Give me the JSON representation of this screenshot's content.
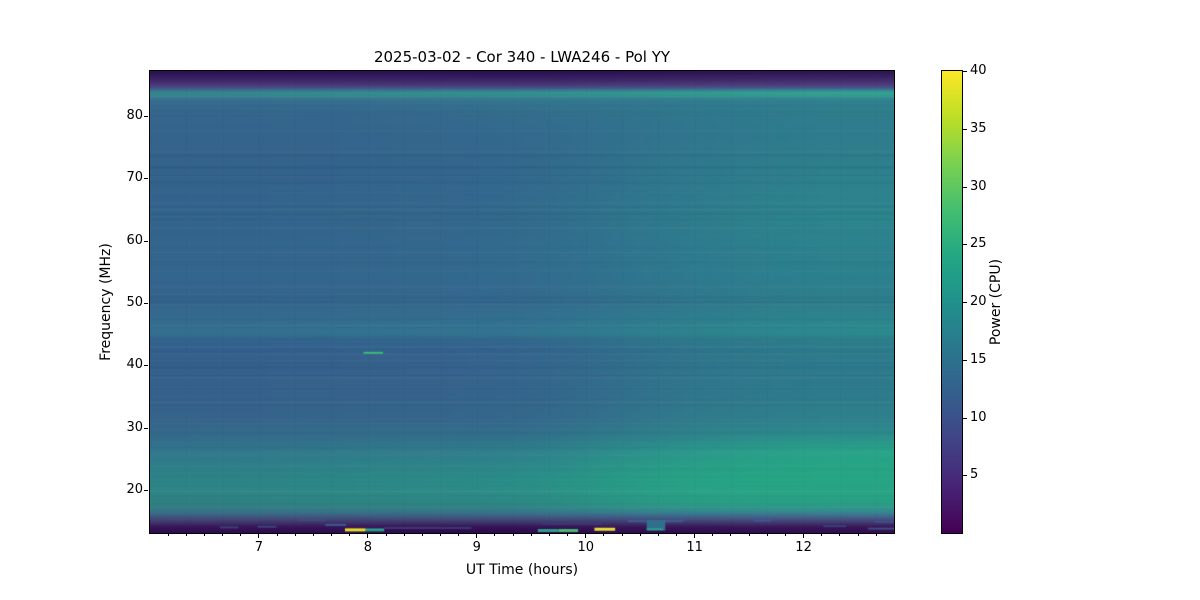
{
  "chart_data": {
    "type": "heatmap",
    "title": "2025-03-02 - Cor 340 - LWA246 - Pol YY",
    "xlabel": "UT Time (hours)",
    "ylabel": "Frequency (MHz)",
    "x_range": [
      6.0,
      12.83
    ],
    "y_range": [
      13.1,
      87.2
    ],
    "x_ticks": [
      7,
      8,
      9,
      10,
      11,
      12
    ],
    "x_minor_divisions": 6,
    "y_ticks": [
      20,
      30,
      40,
      50,
      60,
      70,
      80
    ],
    "colorbar": {
      "label": "Power (CPU)",
      "range": [
        0,
        40
      ],
      "ticks": [
        5,
        10,
        15,
        20,
        25,
        30,
        35,
        40
      ],
      "colormap": "viridis",
      "stops": [
        {
          "p": 0.0,
          "c": "#440154"
        },
        {
          "p": 0.1,
          "c": "#482475"
        },
        {
          "p": 0.2,
          "c": "#414487"
        },
        {
          "p": 0.3,
          "c": "#355f8d"
        },
        {
          "p": 0.4,
          "c": "#2a788e"
        },
        {
          "p": 0.5,
          "c": "#21918c"
        },
        {
          "p": 0.6,
          "c": "#22a884"
        },
        {
          "p": 0.7,
          "c": "#44bf70"
        },
        {
          "p": 0.8,
          "c": "#7ad151"
        },
        {
          "p": 0.9,
          "c": "#bddf26"
        },
        {
          "p": 1.0,
          "c": "#fde725"
        }
      ]
    },
    "heatmap": {
      "time_stops": [
        6.0,
        7.7,
        9.4,
        11.1,
        12.83
      ],
      "rows": [
        {
          "f": 87.2,
          "colors": [
            "#2b1254",
            "#2b1254",
            "#2a1154",
            "#2c1355",
            "#2e1656"
          ]
        },
        {
          "f": 86.1,
          "colors": [
            "#3a2263",
            "#3a2263",
            "#392162",
            "#3b2464",
            "#3e2767"
          ]
        },
        {
          "f": 85.2,
          "colors": [
            "#4a3674",
            "#493674",
            "#483573",
            "#4b3876",
            "#4e3b79"
          ]
        },
        {
          "f": 84.6,
          "colors": [
            "#465289",
            "#45528a",
            "#44538a",
            "#45568d",
            "#47598f"
          ]
        },
        {
          "f": 84.15,
          "colors": [
            "#37798f",
            "#368090",
            "#348490",
            "#318d90",
            "#309591"
          ]
        },
        {
          "f": 83.7,
          "colors": [
            "#2e8c8c",
            "#2e928d",
            "#2e968d",
            "#2f9e8e",
            "#31a68f"
          ]
        },
        {
          "f": 83.2,
          "colors": [
            "#3a7d92",
            "#398292",
            "#388492",
            "#368a94",
            "#359094"
          ]
        },
        {
          "f": 82.4,
          "colors": [
            "#356b8e",
            "#346f8e",
            "#33748e",
            "#30798e",
            "#2f7f8e"
          ]
        },
        {
          "f": 80.5,
          "colors": [
            "#35658c",
            "#34688d",
            "#336d8d",
            "#30768d",
            "#2e7d8d"
          ]
        },
        {
          "f": 77.0,
          "colors": [
            "#34638b",
            "#34658c",
            "#33698d",
            "#30748d",
            "#2e7c8d"
          ]
        },
        {
          "f": 71.0,
          "colors": [
            "#33628b",
            "#33648c",
            "#32688d",
            "#2f778d",
            "#2d808d"
          ]
        },
        {
          "f": 64.0,
          "colors": [
            "#33648c",
            "#33668c",
            "#326a8d",
            "#2e7a8d",
            "#2c848d"
          ]
        },
        {
          "f": 57.0,
          "colors": [
            "#33658d",
            "#33678d",
            "#326b8e",
            "#2e798e",
            "#2c828e"
          ]
        },
        {
          "f": 50.0,
          "colors": [
            "#34648d",
            "#34668d",
            "#33698e",
            "#2f768d",
            "#2d7e8d"
          ]
        },
        {
          "f": 45.4,
          "colors": [
            "#337090",
            "#337390",
            "#327591",
            "#2d828f",
            "#2b8a8e"
          ]
        },
        {
          "f": 44.7,
          "colors": [
            "#336d8f",
            "#336f8f",
            "#32728f",
            "#2e7e8d",
            "#2b868d"
          ]
        },
        {
          "f": 44.1,
          "colors": [
            "#33628e",
            "#33648e",
            "#33668e",
            "#2f768c",
            "#2d7e8c"
          ]
        },
        {
          "f": 40.5,
          "colors": [
            "#345f8c",
            "#34618c",
            "#34648d",
            "#2f738c",
            "#2d7a8c"
          ]
        },
        {
          "f": 36.0,
          "colors": [
            "#35608b",
            "#35628b",
            "#34648c",
            "#30748c",
            "#2d7a8c"
          ]
        },
        {
          "f": 31.5,
          "colors": [
            "#35638a",
            "#35658a",
            "#34678b",
            "#30788b",
            "#2e808c"
          ]
        },
        {
          "f": 29.0,
          "colors": [
            "#346a8b",
            "#336c8b",
            "#326e8b",
            "#2e808b",
            "#2c8a8c"
          ]
        },
        {
          "f": 26.5,
          "colors": [
            "#31748c",
            "#30788b",
            "#2f7c8b",
            "#2a928b",
            "#28a189"
          ]
        },
        {
          "f": 24.0,
          "colors": [
            "#2e7e89",
            "#2d8289",
            "#2c868a",
            "#289c87",
            "#26a485"
          ]
        },
        {
          "f": 21.5,
          "colors": [
            "#2d8487",
            "#2c8887",
            "#2b8e88",
            "#28a186",
            "#27a685"
          ]
        },
        {
          "f": 19.0,
          "colors": [
            "#2e8485",
            "#2d8885",
            "#2c8c86",
            "#29a086",
            "#28a485"
          ]
        },
        {
          "f": 17.3,
          "colors": [
            "#308083",
            "#2f8384",
            "#2e8785",
            "#2c9a87",
            "#2b9e87"
          ]
        },
        {
          "f": 16.2,
          "colors": [
            "#396f87",
            "#387188",
            "#37748a",
            "#377f90",
            "#388392"
          ]
        },
        {
          "f": 15.4,
          "colors": [
            "#41507c",
            "#41527d",
            "#40547f",
            "#425a85",
            "#435d88"
          ]
        },
        {
          "f": 14.6,
          "colors": [
            "#3f3468",
            "#3f3468",
            "#3e3569",
            "#41386c",
            "#42396d"
          ]
        },
        {
          "f": 13.9,
          "colors": [
            "#371457",
            "#371457",
            "#361356",
            "#381557",
            "#391658"
          ]
        },
        {
          "f": 13.1,
          "colors": [
            "#2f0b51",
            "#2f0b51",
            "#2e0a50",
            "#300c52",
            "#310d53"
          ]
        }
      ]
    },
    "features": [
      {
        "t0": 7.96,
        "t1": 8.14,
        "f": 42.0,
        "h": 2,
        "color": "#3dbc74"
      },
      {
        "t0": 6.17,
        "t1": 6.35,
        "f": 15.4,
        "h": 2,
        "color": "#3e4e80"
      },
      {
        "t0": 6.64,
        "t1": 6.81,
        "f": 14.0,
        "h": 2,
        "color": "#3c3f74"
      },
      {
        "t0": 6.99,
        "t1": 7.16,
        "f": 14.1,
        "h": 2,
        "color": "#3a4478"
      },
      {
        "t0": 7.36,
        "t1": 7.61,
        "f": 15.2,
        "h": 2,
        "color": "#3f4d80"
      },
      {
        "t0": 7.61,
        "t1": 7.8,
        "f": 14.4,
        "h": 2,
        "color": "#3b5b92"
      },
      {
        "t0": 7.79,
        "t1": 7.98,
        "f": 13.6,
        "h": 3,
        "color": "#e8e32a"
      },
      {
        "t0": 7.98,
        "t1": 8.15,
        "f": 13.6,
        "h": 3,
        "color": "#2aa08d"
      },
      {
        "t0": 8.15,
        "t1": 8.95,
        "f": 13.9,
        "h": 2,
        "color": "#3a3a6e"
      },
      {
        "t0": 9.56,
        "t1": 9.75,
        "f": 13.5,
        "h": 3,
        "color": "#2f9e8b"
      },
      {
        "t0": 9.75,
        "t1": 9.93,
        "f": 13.5,
        "h": 3,
        "color": "#49b973"
      },
      {
        "t0": 9.6,
        "t1": 10.15,
        "f": 14.6,
        "h": 2,
        "color": "#3a3b72"
      },
      {
        "t0": 10.08,
        "t1": 10.27,
        "f": 13.7,
        "h": 3,
        "color": "#e8e134"
      },
      {
        "t0": 10.39,
        "t1": 10.89,
        "f": 15.0,
        "h": 2,
        "color": "#3c5d92"
      },
      {
        "t0": 10.56,
        "t1": 10.73,
        "f0": 15.2,
        "f1": 13.5,
        "color": "#31708d"
      },
      {
        "t0": 10.56,
        "t1": 10.71,
        "f": 13.7,
        "h": 2,
        "color": "#2aa08a"
      },
      {
        "t0": 10.84,
        "t1": 10.91,
        "f": 15.2,
        "h": 2,
        "color": "#3f5588"
      },
      {
        "t0": 11.54,
        "t1": 11.7,
        "f": 15.1,
        "h": 2,
        "color": "#3b5a92"
      },
      {
        "t0": 12.18,
        "t1": 12.39,
        "f": 14.2,
        "h": 2,
        "color": "#393f76"
      },
      {
        "t0": 12.65,
        "t1": 12.83,
        "f": 14.9,
        "h": 2,
        "color": "#41518a"
      },
      {
        "t0": 12.59,
        "t1": 12.83,
        "f": 13.8,
        "h": 2,
        "color": "#3f4c84"
      }
    ]
  }
}
